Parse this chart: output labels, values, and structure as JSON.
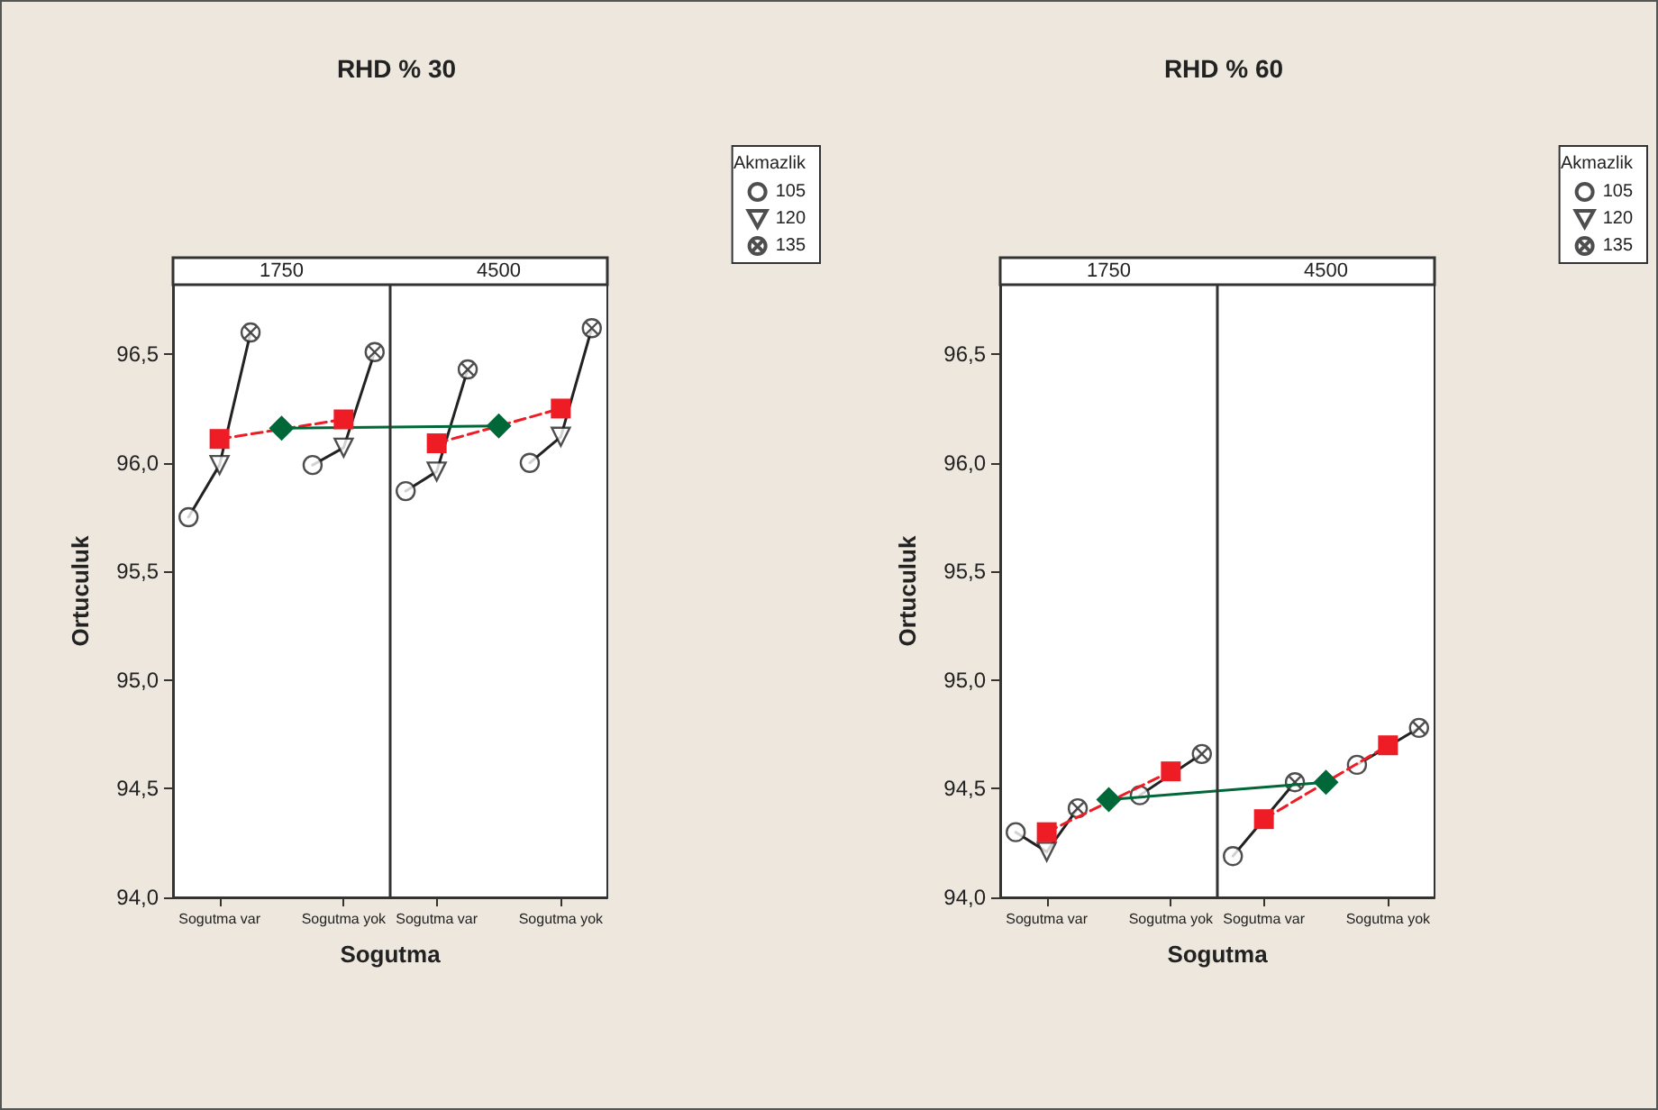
{
  "chart_data": [
    {
      "type": "scatter",
      "title": "RHD % 30",
      "xlabel": "Sogutma",
      "ylabel": "Ortuculuk",
      "legend_title": "Akmazlik",
      "legend": "top right",
      "categories": [
        null,
        "Sogutma var",
        null,
        null,
        null,
        "Sogutma yok",
        null,
        null,
        "Sogutma var",
        null,
        null,
        null,
        "Sogutma yok",
        null
      ],
      "ylim": [
        94,
        96.82
      ],
      "yticks": [
        {
          "value": 94,
          "label": "94,0"
        },
        {
          "value": 94.5,
          "label": "94,5"
        },
        {
          "value": 95,
          "label": "95,0"
        },
        {
          "value": 95.5,
          "label": "95,5"
        },
        {
          "value": 96,
          "label": "96,0"
        },
        {
          "value": 96.5,
          "label": "96,5"
        }
      ],
      "annotations": [
        "1750",
        "4500"
      ],
      "series": [
        {
          "name": "105",
          "marker": "circle",
          "color": "#222222",
          "values": [
            95.75,
            null,
            null,
            null,
            95.99,
            null,
            null,
            95.87,
            null,
            null,
            null,
            96.0,
            null,
            null
          ]
        },
        {
          "name": "120",
          "marker": "triangle",
          "color": "#222222",
          "values": [
            null,
            95.99,
            null,
            null,
            null,
            96.07,
            null,
            null,
            95.96,
            null,
            null,
            null,
            96.12,
            null
          ]
        },
        {
          "name": "135",
          "marker": "cross",
          "color": "#222222",
          "values": [
            null,
            null,
            96.6,
            null,
            null,
            null,
            96.51,
            null,
            null,
            96.43,
            null,
            null,
            null,
            96.62
          ]
        },
        {
          "type": "line",
          "marker": "none",
          "color": "#222222",
          "values": [
            95.75,
            95.99,
            96.6,
            null,
            null,
            null,
            null,
            null,
            null,
            null,
            null,
            null,
            null,
            null
          ]
        },
        {
          "type": "line",
          "marker": "none",
          "color": "#222222",
          "values": [
            null,
            null,
            null,
            null,
            95.99,
            96.07,
            96.51,
            null,
            null,
            null,
            null,
            null,
            null,
            null
          ]
        },
        {
          "type": "line",
          "marker": "none",
          "color": "#222222",
          "values": [
            null,
            null,
            null,
            null,
            null,
            null,
            null,
            95.87,
            95.96,
            96.43,
            null,
            null,
            null,
            null
          ]
        },
        {
          "type": "line",
          "marker": "none",
          "color": "#222222",
          "values": [
            null,
            null,
            null,
            null,
            null,
            null,
            null,
            null,
            null,
            null,
            null,
            96.0,
            96.12,
            96.62
          ]
        },
        {
          "type": "line",
          "marker": "square",
          "line_style": "dashed",
          "color": "#ee1c25",
          "values": [
            null,
            96.11,
            null,
            null,
            null,
            96.2,
            null,
            null,
            null,
            null,
            null,
            null,
            null,
            null
          ]
        },
        {
          "type": "line",
          "marker": "square",
          "line_style": "dashed",
          "color": "#ee1c25",
          "values": [
            null,
            null,
            null,
            null,
            null,
            null,
            null,
            null,
            96.09,
            null,
            null,
            null,
            96.25,
            null
          ]
        },
        {
          "type": "line",
          "marker": "diamond",
          "color": "#006838",
          "values": [
            null,
            null,
            null,
            96.16,
            null,
            null,
            null,
            null,
            null,
            null,
            96.17,
            null,
            null,
            null
          ]
        }
      ]
    },
    {
      "type": "scatter",
      "title": "RHD % 60",
      "xlabel": "Sogutma",
      "ylabel": "Ortuculuk",
      "legend_title": "Akmazlik",
      "legend": "top right",
      "categories": [
        null,
        "Sogutma var",
        null,
        null,
        null,
        "Sogutma yok",
        null,
        null,
        "Sogutma var",
        null,
        null,
        null,
        "Sogutma yok",
        null
      ],
      "ylim": [
        94,
        96.82
      ],
      "yticks": [
        {
          "value": 94,
          "label": "94,0"
        },
        {
          "value": 94.5,
          "label": "94,5"
        },
        {
          "value": 95,
          "label": "95,0"
        },
        {
          "value": 95.5,
          "label": "95,5"
        },
        {
          "value": 96,
          "label": "96,0"
        },
        {
          "value": 96.5,
          "label": "96,5"
        }
      ],
      "annotations": [
        "1750",
        "4500"
      ],
      "series": [
        {
          "name": "105",
          "marker": "circle",
          "color": "#222222",
          "values": [
            94.3,
            null,
            null,
            null,
            94.47,
            null,
            null,
            94.19,
            null,
            null,
            null,
            94.61,
            null,
            null
          ]
        },
        {
          "name": "120",
          "marker": "triangle",
          "color": "#222222",
          "values": [
            null,
            94.21,
            null,
            null,
            null,
            null,
            null,
            null,
            null,
            null,
            null,
            null,
            null,
            null
          ]
        },
        {
          "name": "135",
          "marker": "cross",
          "color": "#222222",
          "values": [
            null,
            null,
            94.41,
            null,
            null,
            null,
            94.66,
            null,
            null,
            94.53,
            null,
            null,
            null,
            94.78
          ]
        },
        {
          "type": "line",
          "marker": "none",
          "color": "#222222",
          "values": [
            94.3,
            94.21,
            94.41,
            null,
            null,
            null,
            null,
            null,
            null,
            null,
            null,
            null,
            null,
            null
          ]
        },
        {
          "type": "line",
          "marker": "none",
          "color": "#222222",
          "values": [
            null,
            null,
            null,
            null,
            94.47,
            null,
            94.66,
            null,
            null,
            null,
            null,
            null,
            null,
            null
          ]
        },
        {
          "type": "line",
          "marker": "none",
          "color": "#222222",
          "values": [
            null,
            null,
            null,
            null,
            null,
            null,
            null,
            94.19,
            null,
            94.53,
            null,
            null,
            null,
            null
          ]
        },
        {
          "type": "line",
          "marker": "none",
          "color": "#222222",
          "values": [
            null,
            null,
            null,
            null,
            null,
            null,
            null,
            null,
            null,
            null,
            null,
            94.61,
            null,
            94.78
          ]
        },
        {
          "type": "line",
          "marker": "square",
          "line_style": "dashed",
          "color": "#ee1c25",
          "values": [
            null,
            94.3,
            null,
            null,
            null,
            94.58,
            null,
            null,
            null,
            null,
            null,
            null,
            null,
            null
          ]
        },
        {
          "type": "line",
          "marker": "square",
          "line_style": "dashed",
          "color": "#ee1c25",
          "values": [
            null,
            null,
            null,
            null,
            null,
            null,
            null,
            null,
            94.36,
            null,
            null,
            null,
            94.7,
            null
          ]
        },
        {
          "type": "line",
          "marker": "diamond",
          "color": "#006838",
          "values": [
            null,
            null,
            null,
            94.45,
            null,
            null,
            null,
            null,
            null,
            null,
            94.53,
            null,
            null,
            null
          ]
        }
      ]
    }
  ]
}
